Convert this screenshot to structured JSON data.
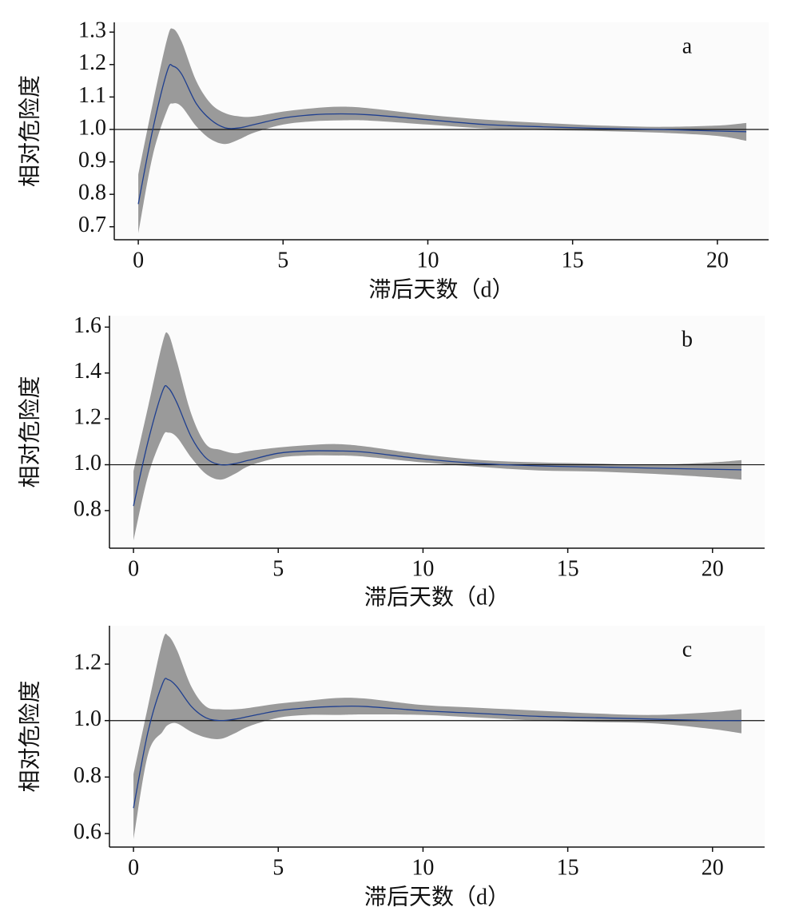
{
  "chart_data": [
    {
      "type": "line",
      "label": "a",
      "xlabel": "滞后天数（d）",
      "ylabel": "相对危险度",
      "x": [
        0,
        0.5,
        1,
        1.2,
        1.5,
        2,
        2.5,
        3,
        3.5,
        4,
        5,
        6,
        7,
        8,
        10,
        12,
        14,
        16,
        18,
        20,
        21
      ],
      "values": [
        0.77,
        1.0,
        1.18,
        1.195,
        1.17,
        1.08,
        1.03,
        1.005,
        1.005,
        1.015,
        1.035,
        1.045,
        1.048,
        1.045,
        1.03,
        1.015,
        1.008,
        1.003,
        1.0,
        0.995,
        0.993
      ],
      "lower": [
        0.68,
        0.92,
        1.06,
        1.08,
        1.07,
        1.01,
        0.97,
        0.955,
        0.97,
        0.99,
        1.015,
        1.025,
        1.028,
        1.027,
        1.015,
        1.003,
        0.998,
        0.995,
        0.99,
        0.98,
        0.965
      ],
      "upper": [
        0.86,
        1.08,
        1.28,
        1.31,
        1.27,
        1.15,
        1.08,
        1.05,
        1.04,
        1.04,
        1.055,
        1.065,
        1.07,
        1.065,
        1.045,
        1.03,
        1.02,
        1.012,
        1.008,
        1.012,
        1.02
      ],
      "hline": 1,
      "color": "#1f3f8f",
      "band_color": "#9a9a9a",
      "xlim": [
        -0.83,
        21.77
      ],
      "ylim": [
        0.66,
        1.33
      ],
      "xticks": [
        0,
        5,
        10,
        15,
        20
      ],
      "yticks": [
        0.7,
        0.8,
        0.9,
        {
          "value": 1,
          "label": "1.0"
        },
        1.1,
        1.2,
        1.3
      ]
    },
    {
      "type": "line",
      "label": "b",
      "xlabel": "滞后天数（d）",
      "ylabel": "相对危险度",
      "x": [
        0,
        0.5,
        1,
        1.2,
        1.5,
        2,
        2.5,
        3,
        3.5,
        4,
        5,
        6,
        7,
        8,
        10,
        12,
        14,
        16,
        18,
        20,
        21
      ],
      "values": [
        0.82,
        1.1,
        1.32,
        1.335,
        1.27,
        1.12,
        1.03,
        1.0,
        1.005,
        1.02,
        1.05,
        1.06,
        1.06,
        1.055,
        1.025,
        1.005,
        0.995,
        0.99,
        0.985,
        0.98,
        0.978
      ],
      "lower": [
        0.67,
        0.95,
        1.12,
        1.14,
        1.12,
        1.03,
        0.96,
        0.935,
        0.96,
        0.995,
        1.03,
        1.04,
        1.04,
        1.035,
        1.01,
        0.99,
        0.975,
        0.97,
        0.96,
        0.945,
        0.935
      ],
      "upper": [
        0.97,
        1.25,
        1.53,
        1.57,
        1.45,
        1.22,
        1.09,
        1.065,
        1.05,
        1.06,
        1.075,
        1.085,
        1.09,
        1.08,
        1.045,
        1.02,
        1.01,
        1.005,
        1.0,
        1.01,
        1.02
      ],
      "hline": 1,
      "color": "#1f3f8f",
      "band_color": "#9a9a9a",
      "xlim": [
        -0.83,
        21.8
      ],
      "ylim": [
        0.636,
        1.65
      ],
      "xticks": [
        0,
        5,
        10,
        15,
        20
      ],
      "yticks": [
        0.8,
        {
          "value": 1,
          "label": "1.0"
        },
        1.2,
        1.4,
        1.6
      ]
    },
    {
      "type": "line",
      "label": "c",
      "xlabel": "滞后天数（d）",
      "ylabel": "相对危险度",
      "x": [
        0,
        0.5,
        1,
        1.2,
        1.5,
        2,
        2.5,
        3,
        3.5,
        4,
        5,
        6,
        7,
        8,
        10,
        12,
        14,
        16,
        18,
        20,
        21
      ],
      "values": [
        0.69,
        0.96,
        1.13,
        1.145,
        1.12,
        1.05,
        1.01,
        1.0,
        1.005,
        1.015,
        1.035,
        1.045,
        1.05,
        1.05,
        1.035,
        1.025,
        1.015,
        1.01,
        1.005,
        1.0,
        1.0
      ],
      "lower": [
        0.58,
        0.88,
        0.96,
        0.985,
        0.99,
        0.96,
        0.94,
        0.935,
        0.955,
        0.98,
        1.01,
        1.02,
        1.02,
        1.022,
        1.02,
        1.01,
        1.0,
        0.995,
        0.99,
        0.97,
        0.955
      ],
      "upper": [
        0.81,
        1.05,
        1.28,
        1.3,
        1.25,
        1.12,
        1.05,
        1.04,
        1.04,
        1.045,
        1.06,
        1.07,
        1.08,
        1.078,
        1.055,
        1.045,
        1.035,
        1.025,
        1.02,
        1.03,
        1.04
      ],
      "hline": 1,
      "color": "#1f3f8f",
      "band_color": "#9a9a9a",
      "xlim": [
        -0.83,
        21.8
      ],
      "ylim": [
        0.552,
        1.336
      ],
      "xticks": [
        0,
        5,
        10,
        15,
        20
      ],
      "yticks": [
        0.6,
        0.8,
        {
          "value": 1,
          "label": "1.0"
        },
        1.2
      ]
    }
  ]
}
